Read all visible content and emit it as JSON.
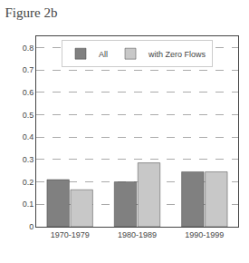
{
  "chart_data": {
    "type": "bar",
    "title": "Figure 2b",
    "categories": [
      "1970-1979",
      "1980-1989",
      "1990-1999"
    ],
    "series": [
      {
        "name": "All",
        "color": "#808080",
        "values": [
          0.21,
          0.2,
          0.245
        ]
      },
      {
        "name": "with Zero Flows",
        "color": "#c8c8c8",
        "values": [
          0.165,
          0.285,
          0.245
        ]
      }
    ],
    "ylim": [
      0,
      0.85
    ],
    "yticks": [
      0,
      0.1,
      0.2,
      0.3,
      0.4,
      0.5,
      0.6,
      0.7,
      0.8
    ],
    "grid": true,
    "legend": "upper center"
  }
}
